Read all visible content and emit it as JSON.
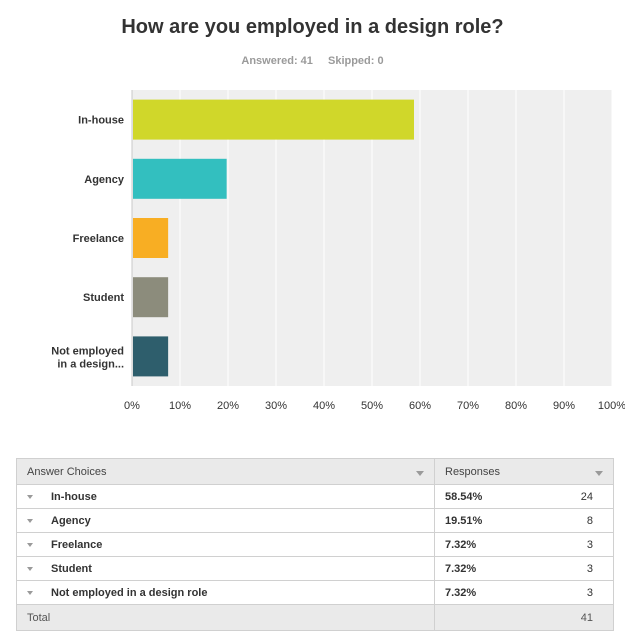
{
  "header": {
    "title": "How are you employed in a design role?",
    "answered": "Answered: 41",
    "skipped": "Skipped: 0"
  },
  "chart_data": {
    "type": "bar",
    "orientation": "horizontal",
    "categories": [
      "In-house",
      "Agency",
      "Freelance",
      "Student",
      "Not employed in a design..."
    ],
    "values": [
      58.54,
      19.51,
      7.32,
      7.32,
      7.32
    ],
    "colors": [
      "#d0d72a",
      "#33bfbf",
      "#f8ae23",
      "#8c8c7c",
      "#2e5e6c"
    ],
    "xlim": [
      0,
      100
    ],
    "xticks": [
      "0%",
      "10%",
      "20%",
      "30%",
      "40%",
      "50%",
      "60%",
      "70%",
      "80%",
      "90%",
      "100%"
    ],
    "grid": true,
    "background": "#efefef"
  },
  "table": {
    "headers": {
      "choices": "Answer Choices",
      "responses": "Responses"
    },
    "rows": [
      {
        "choice": "In-house",
        "percent": "58.54%",
        "count": "24"
      },
      {
        "choice": "Agency",
        "percent": "19.51%",
        "count": "8"
      },
      {
        "choice": "Freelance",
        "percent": "7.32%",
        "count": "3"
      },
      {
        "choice": "Student",
        "percent": "7.32%",
        "count": "3"
      },
      {
        "choice": "Not employed in a design role",
        "percent": "7.32%",
        "count": "3"
      }
    ],
    "total_label": "Total",
    "total_count": "41"
  }
}
